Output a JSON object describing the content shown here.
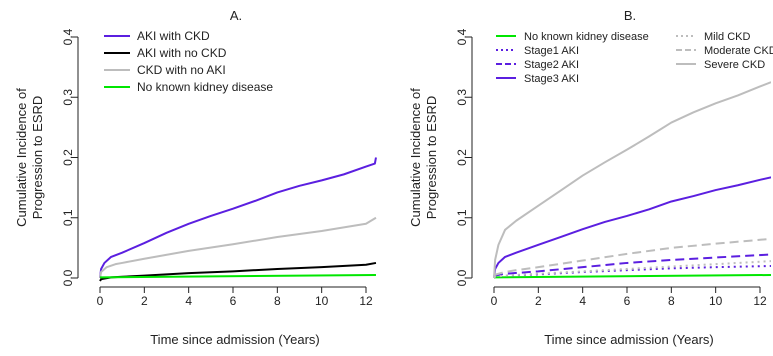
{
  "chart_data": [
    {
      "type": "line",
      "title": "A.",
      "xlabel": "Time since admission (Years)",
      "ylabel": "Cumulative Incidence of\nProgression to ESRD",
      "xlim": [
        0,
        12.5
      ],
      "ylim": [
        0,
        0.4
      ],
      "xticks": [
        "0",
        "2",
        "4",
        "6",
        "8",
        "10",
        "12"
      ],
      "yticks": [
        "0.0",
        "0.1",
        "0.2",
        "0.3",
        "0.4"
      ],
      "legend_position": "top-left",
      "series": [
        {
          "name": "AKI with CKD",
          "color": "#5b1fe0",
          "style": "solid",
          "x": [
            0,
            0.05,
            0.2,
            0.5,
            1,
            2,
            3,
            4,
            5,
            6,
            7,
            8,
            9,
            10,
            11,
            12,
            12.4,
            12.45
          ],
          "y": [
            0,
            0.015,
            0.025,
            0.035,
            0.042,
            0.058,
            0.075,
            0.09,
            0.103,
            0.115,
            0.128,
            0.142,
            0.153,
            0.162,
            0.172,
            0.185,
            0.19,
            0.2
          ]
        },
        {
          "name": "AKI with no CKD",
          "color": "#000000",
          "style": "solid",
          "x": [
            0,
            0.05,
            0.5,
            1,
            2,
            4,
            6,
            8,
            10,
            12,
            12.45
          ],
          "y": [
            -0.005,
            -0.002,
            0.001,
            0.002,
            0.004,
            0.008,
            0.011,
            0.015,
            0.018,
            0.022,
            0.025
          ]
        },
        {
          "name": "CKD with no AKI",
          "color": "#bdbdbd",
          "style": "solid",
          "x": [
            0,
            0.05,
            0.3,
            0.7,
            1,
            2,
            4,
            6,
            8,
            10,
            12,
            12.45
          ],
          "y": [
            0,
            0.01,
            0.018,
            0.023,
            0.025,
            0.032,
            0.045,
            0.056,
            0.068,
            0.078,
            0.09,
            0.1
          ]
        },
        {
          "name": "No known kidney disease",
          "color": "#00e600",
          "style": "solid",
          "x": [
            0,
            12.45
          ],
          "y": [
            0.001,
            0.005
          ]
        }
      ]
    },
    {
      "type": "line",
      "title": "B.",
      "xlabel": "Time since admission (Years)",
      "ylabel": "Cumulative Incidence of\nProgression to ESRD",
      "xlim": [
        0,
        12.5
      ],
      "ylim": [
        0,
        0.4
      ],
      "xticks": [
        "0",
        "2",
        "4",
        "6",
        "8",
        "10",
        "12"
      ],
      "yticks": [
        "0.0",
        "0.1",
        "0.2",
        "0.3",
        "0.4"
      ],
      "legend_position": "top",
      "series": [
        {
          "name": "No known kidney disease",
          "color": "#00e600",
          "style": "solid",
          "x": [
            0,
            12.5
          ],
          "y": [
            0.001,
            0.005
          ]
        },
        {
          "name": "Stage1 AKI",
          "color": "#5b1fe0",
          "style": "dotted",
          "x": [
            0,
            0.5,
            2,
            4,
            6,
            8,
            10,
            12.5
          ],
          "y": [
            0.002,
            0.004,
            0.006,
            0.01,
            0.013,
            0.016,
            0.018,
            0.02
          ]
        },
        {
          "name": "Stage2 AKI",
          "color": "#5b1fe0",
          "style": "dashed",
          "x": [
            0,
            0.5,
            2,
            4,
            6,
            8,
            10,
            12.5
          ],
          "y": [
            0.004,
            0.007,
            0.011,
            0.018,
            0.025,
            0.03,
            0.034,
            0.039
          ]
        },
        {
          "name": "Stage3 AKI",
          "color": "#5b1fe0",
          "style": "solid",
          "x": [
            0,
            0.05,
            0.2,
            0.5,
            1,
            2,
            3,
            4,
            5,
            6,
            7,
            8,
            9,
            10,
            11,
            12,
            12.5
          ],
          "y": [
            0,
            0.015,
            0.025,
            0.035,
            0.042,
            0.055,
            0.068,
            0.081,
            0.093,
            0.103,
            0.114,
            0.127,
            0.136,
            0.146,
            0.154,
            0.163,
            0.167
          ]
        },
        {
          "name": "Mild CKD",
          "color": "#bdbdbd",
          "style": "dotted",
          "x": [
            0,
            0.5,
            2,
            4,
            6,
            8,
            10,
            12.5
          ],
          "y": [
            0.002,
            0.004,
            0.007,
            0.011,
            0.015,
            0.019,
            0.023,
            0.028
          ]
        },
        {
          "name": "Moderate CKD",
          "color": "#bdbdbd",
          "style": "dashed",
          "x": [
            0,
            0.5,
            1,
            2,
            4,
            6,
            8,
            10,
            12.5
          ],
          "y": [
            0.005,
            0.01,
            0.013,
            0.018,
            0.029,
            0.04,
            0.05,
            0.057,
            0.065
          ]
        },
        {
          "name": "Severe CKD",
          "color": "#bdbdbd",
          "style": "solid",
          "x": [
            0,
            0.05,
            0.2,
            0.5,
            1,
            2,
            3,
            4,
            5,
            6,
            7,
            8,
            9,
            10,
            11,
            12,
            12.5
          ],
          "y": [
            0,
            0.03,
            0.055,
            0.08,
            0.095,
            0.12,
            0.145,
            0.17,
            0.192,
            0.213,
            0.235,
            0.258,
            0.275,
            0.29,
            0.303,
            0.318,
            0.325
          ]
        }
      ]
    }
  ]
}
